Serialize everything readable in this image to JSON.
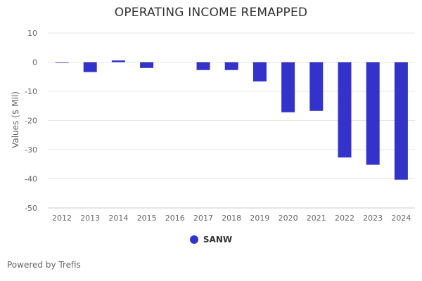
{
  "chart_data": {
    "type": "bar",
    "title": "OPERATING INCOME REMAPPED",
    "ylabel": "Values ($ Mil)",
    "xlabel": "",
    "categories": [
      "2012",
      "2013",
      "2014",
      "2015",
      "2016",
      "2017",
      "2018",
      "2019",
      "2020",
      "2021",
      "2022",
      "2023",
      "2024"
    ],
    "series": [
      {
        "name": "SANW",
        "color": "#3333cc",
        "values": [
          -0.2,
          -3.4,
          0.6,
          -2.0,
          0.0,
          -2.7,
          -2.7,
          -6.6,
          -17.2,
          -16.7,
          -32.7,
          -35.2,
          -40.3
        ]
      }
    ],
    "ylim": [
      -50,
      10
    ],
    "yticks": [
      10,
      0,
      -10,
      -20,
      -30,
      -40,
      -50
    ],
    "grid": true,
    "legend_position": "bottom-center"
  },
  "footer": {
    "text": "Powered by Trefis"
  }
}
